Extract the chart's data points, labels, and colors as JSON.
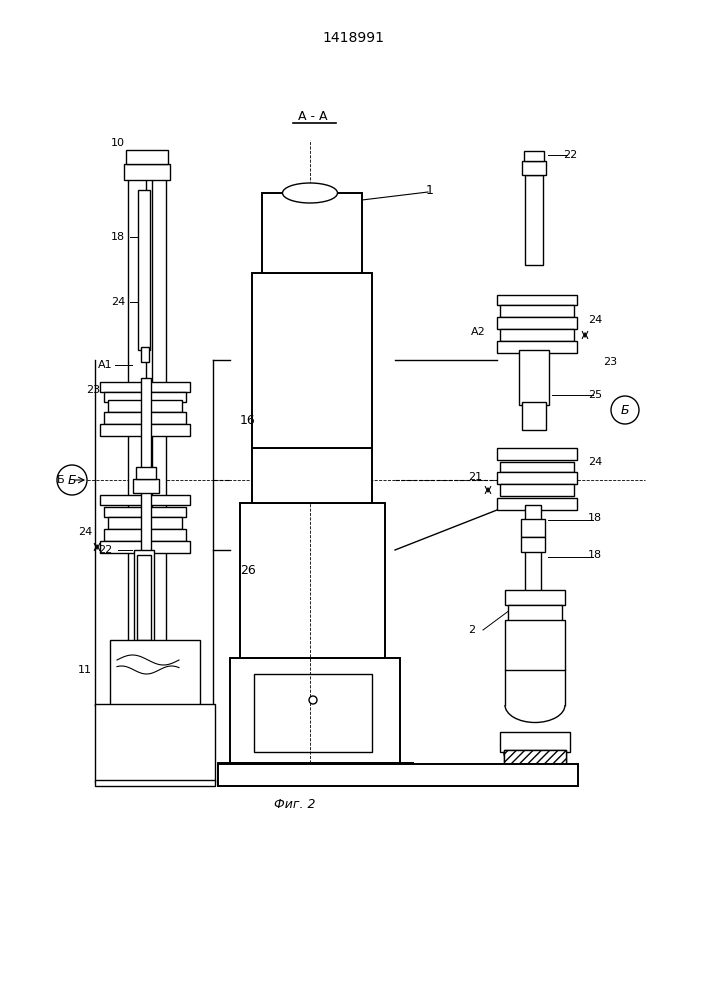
{
  "title": "1418991",
  "aa_label": "А - А",
  "caption": "Фиг. 2",
  "bg_color": "#ffffff",
  "line_color": "#000000"
}
